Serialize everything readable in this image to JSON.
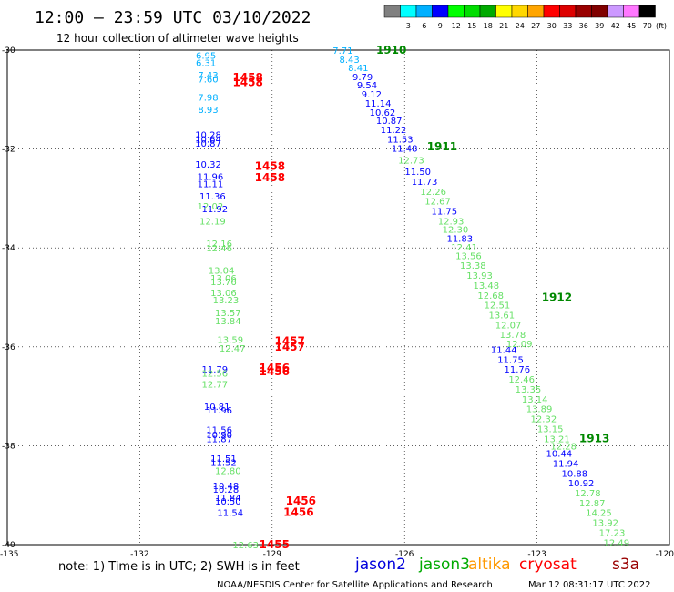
{
  "header": {
    "title": "12:00 – 23:59 UTC 03/10/2022",
    "subtitle": "12 hour collection of altimeter wave heights"
  },
  "legend": {
    "bins": [
      {
        "label": "",
        "color": "#808080"
      },
      {
        "label": "3",
        "color": "#00ffff"
      },
      {
        "label": "6",
        "color": "#00b0ff"
      },
      {
        "label": "9",
        "color": "#0000ff"
      },
      {
        "label": "12",
        "color": "#00ff00"
      },
      {
        "label": "15",
        "color": "#00dd00"
      },
      {
        "label": "18",
        "color": "#00aa00"
      },
      {
        "label": "21",
        "color": "#ffff00"
      },
      {
        "label": "24",
        "color": "#ffd700"
      },
      {
        "label": "27",
        "color": "#ffa500"
      },
      {
        "label": "30",
        "color": "#ff0000"
      },
      {
        "label": "33",
        "color": "#dd0000"
      },
      {
        "label": "36",
        "color": "#990000"
      },
      {
        "label": "39",
        "color": "#800000"
      },
      {
        "label": "42",
        "color": "#cc99ff"
      },
      {
        "label": "45",
        "color": "#ff77ff"
      },
      {
        "label": "70",
        "color": "#000000"
      }
    ],
    "unit": "(ft)"
  },
  "chart_data": {
    "type": "scatter",
    "title": "12:00 – 23:59 UTC 03/10/2022",
    "subtitle": "12 hour collection of altimeter wave heights",
    "xlim": [
      -135,
      -120
    ],
    "ylim": [
      -40,
      -30
    ],
    "x_ticks": [
      "-135",
      "-132",
      "-129",
      "-126",
      "-123",
      "-120"
    ],
    "y_ticks": [
      "-30",
      "-32",
      "-34",
      "-36",
      "-38",
      "-40"
    ],
    "grid": true,
    "colors": {
      "cyan": "#00b0ff",
      "blue": "#0000ff",
      "green": "#66e066",
      "time_red": "#ff0000",
      "time_green": "#008800"
    },
    "series": [
      {
        "name": "jason2",
        "points": [
          {
            "x": -130.5,
            "y": -30.1,
            "label": "6.95",
            "c": "cyan"
          },
          {
            "x": -130.5,
            "y": -30.25,
            "label": "6.31",
            "c": "cyan"
          },
          {
            "x": -130.45,
            "y": -30.5,
            "label": "7.43",
            "c": "cyan"
          },
          {
            "x": -130.45,
            "y": -30.58,
            "label": "7.60",
            "c": "cyan"
          },
          {
            "x": -130.45,
            "y": -30.95,
            "label": "7.98",
            "c": "cyan"
          },
          {
            "x": -130.45,
            "y": -31.2,
            "label": "8.93",
            "c": "cyan"
          },
          {
            "x": -130.45,
            "y": -31.7,
            "label": "10.28",
            "c": "blue"
          },
          {
            "x": -130.45,
            "y": -31.8,
            "label": "10.64",
            "c": "blue"
          },
          {
            "x": -130.45,
            "y": -31.88,
            "label": "10.87",
            "c": "blue"
          },
          {
            "x": -130.45,
            "y": -32.3,
            "label": "10.32",
            "c": "blue"
          },
          {
            "x": -130.4,
            "y": -32.55,
            "label": "11.96",
            "c": "blue"
          },
          {
            "x": -130.4,
            "y": -32.7,
            "label": "11.11",
            "c": "blue"
          },
          {
            "x": -130.35,
            "y": -32.95,
            "label": "11.36",
            "c": "blue"
          },
          {
            "x": -130.3,
            "y": -33.2,
            "label": "11.92",
            "c": "blue"
          },
          {
            "x": -130.3,
            "y": -36.45,
            "label": "11.79",
            "c": "blue"
          },
          {
            "x": -130.25,
            "y": -37.2,
            "label": "10.81",
            "c": "blue"
          },
          {
            "x": -130.2,
            "y": -37.27,
            "label": "11.96",
            "c": "blue"
          },
          {
            "x": -130.2,
            "y": -37.67,
            "label": "11.56",
            "c": "blue"
          },
          {
            "x": -130.2,
            "y": -37.77,
            "label": "10.90",
            "c": "blue"
          },
          {
            "x": -130.2,
            "y": -37.85,
            "label": "11.87",
            "c": "blue"
          },
          {
            "x": -130.1,
            "y": -38.25,
            "label": "11.51",
            "c": "blue"
          },
          {
            "x": -130.1,
            "y": -38.33,
            "label": "11.52",
            "c": "blue"
          },
          {
            "x": -130.05,
            "y": -38.8,
            "label": "10.48",
            "c": "blue"
          },
          {
            "x": -130.05,
            "y": -38.88,
            "label": "10.28",
            "c": "blue"
          },
          {
            "x": -130.0,
            "y": -39.04,
            "label": "11.84",
            "c": "blue"
          },
          {
            "x": -130.0,
            "y": -39.12,
            "label": "10.50",
            "c": "blue"
          },
          {
            "x": -129.95,
            "y": -39.35,
            "label": "11.54",
            "c": "blue"
          },
          {
            "x": -127.4,
            "y": -30.0,
            "label": "7.71",
            "c": "cyan"
          },
          {
            "x": -127.25,
            "y": -30.18,
            "label": "8.43",
            "c": "cyan"
          },
          {
            "x": -127.05,
            "y": -30.35,
            "label": "8.41",
            "c": "cyan"
          },
          {
            "x": -126.95,
            "y": -30.53,
            "label": "9.79",
            "c": "blue"
          },
          {
            "x": -126.85,
            "y": -30.7,
            "label": "9.54",
            "c": "blue"
          },
          {
            "x": -126.75,
            "y": -30.88,
            "label": "9.12",
            "c": "blue"
          },
          {
            "x": -126.6,
            "y": -31.07,
            "label": "11.14",
            "c": "blue"
          },
          {
            "x": -126.5,
            "y": -31.25,
            "label": "10.62",
            "c": "blue"
          },
          {
            "x": -126.35,
            "y": -31.42,
            "label": "10.87",
            "c": "blue"
          },
          {
            "x": -126.25,
            "y": -31.6,
            "label": "11.22",
            "c": "blue"
          },
          {
            "x": -126.1,
            "y": -31.8,
            "label": "11.53",
            "c": "blue"
          },
          {
            "x": -126.0,
            "y": -31.98,
            "label": "11.48",
            "c": "blue"
          },
          {
            "x": -125.7,
            "y": -32.45,
            "label": "11.50",
            "c": "blue"
          },
          {
            "x": -125.55,
            "y": -32.65,
            "label": "11.73",
            "c": "blue"
          },
          {
            "x": -125.1,
            "y": -33.25,
            "label": "11.75",
            "c": "blue"
          },
          {
            "x": -124.75,
            "y": -33.8,
            "label": "11.83",
            "c": "blue"
          },
          {
            "x": -123.75,
            "y": -36.05,
            "label": "11.44",
            "c": "blue"
          },
          {
            "x": -123.6,
            "y": -36.25,
            "label": "11.75",
            "c": "blue"
          },
          {
            "x": -123.45,
            "y": -36.45,
            "label": "11.76",
            "c": "blue"
          },
          {
            "x": -122.5,
            "y": -38.15,
            "label": "10.44",
            "c": "blue"
          },
          {
            "x": -122.35,
            "y": -38.35,
            "label": "11.94",
            "c": "blue"
          },
          {
            "x": -122.15,
            "y": -38.55,
            "label": "10.88",
            "c": "blue"
          },
          {
            "x": -122.0,
            "y": -38.75,
            "label": "10.92",
            "c": "blue"
          }
        ]
      },
      {
        "name": "jason3",
        "points": [
          {
            "x": -130.4,
            "y": -33.15,
            "label": "12.02",
            "c": "green"
          },
          {
            "x": -130.35,
            "y": -33.45,
            "label": "12.19",
            "c": "green"
          },
          {
            "x": -130.2,
            "y": -33.9,
            "label": "12.16",
            "c": "green"
          },
          {
            "x": -130.2,
            "y": -34.0,
            "label": "12.46",
            "c": "green"
          },
          {
            "x": -130.15,
            "y": -34.45,
            "label": "13.04",
            "c": "green"
          },
          {
            "x": -130.1,
            "y": -34.6,
            "label": "13.06",
            "c": "green"
          },
          {
            "x": -130.1,
            "y": -34.68,
            "label": "13.76",
            "c": "green"
          },
          {
            "x": -130.1,
            "y": -34.9,
            "label": "13.06",
            "c": "green"
          },
          {
            "x": -130.05,
            "y": -35.05,
            "label": "13.23",
            "c": "green"
          },
          {
            "x": -130.0,
            "y": -35.3,
            "label": "13.57",
            "c": "green"
          },
          {
            "x": -130.0,
            "y": -35.47,
            "label": "13.84",
            "c": "green"
          },
          {
            "x": -129.95,
            "y": -35.85,
            "label": "13.59",
            "c": "green"
          },
          {
            "x": -129.9,
            "y": -36.02,
            "label": "12.47",
            "c": "green"
          },
          {
            "x": -130.3,
            "y": -36.53,
            "label": "12.56",
            "c": "green"
          },
          {
            "x": -130.3,
            "y": -36.75,
            "label": "12.77",
            "c": "green"
          },
          {
            "x": -130.0,
            "y": -38.5,
            "label": "12.80",
            "c": "green"
          },
          {
            "x": -129.6,
            "y": -40.0,
            "label": "12.63",
            "c": "green"
          },
          {
            "x": -125.85,
            "y": -32.22,
            "label": "12.73",
            "c": "green"
          },
          {
            "x": -125.35,
            "y": -32.85,
            "label": "12.26",
            "c": "green"
          },
          {
            "x": -125.25,
            "y": -33.05,
            "label": "12.67",
            "c": "green"
          },
          {
            "x": -124.95,
            "y": -33.45,
            "label": "12.93",
            "c": "green"
          },
          {
            "x": -124.85,
            "y": -33.62,
            "label": "12.30",
            "c": "green"
          },
          {
            "x": -124.65,
            "y": -33.98,
            "label": "12.41",
            "c": "green"
          },
          {
            "x": -124.55,
            "y": -34.15,
            "label": "13.56",
            "c": "green"
          },
          {
            "x": -124.45,
            "y": -34.35,
            "label": "13.38",
            "c": "green"
          },
          {
            "x": -124.3,
            "y": -34.55,
            "label": "13.93",
            "c": "green"
          },
          {
            "x": -124.15,
            "y": -34.75,
            "label": "13.48",
            "c": "green"
          },
          {
            "x": -124.05,
            "y": -34.95,
            "label": "12.68",
            "c": "green"
          },
          {
            "x": -123.9,
            "y": -35.15,
            "label": "12.51",
            "c": "green"
          },
          {
            "x": -123.8,
            "y": -35.35,
            "label": "13.61",
            "c": "green"
          },
          {
            "x": -123.65,
            "y": -35.55,
            "label": "12.07",
            "c": "green"
          },
          {
            "x": -123.55,
            "y": -35.75,
            "label": "13.78",
            "c": "green"
          },
          {
            "x": -123.4,
            "y": -35.93,
            "label": "12.09",
            "c": "green"
          },
          {
            "x": -123.35,
            "y": -36.65,
            "label": "12.46",
            "c": "green"
          },
          {
            "x": -123.2,
            "y": -36.85,
            "label": "13.35",
            "c": "green"
          },
          {
            "x": -123.05,
            "y": -37.05,
            "label": "13.14",
            "c": "green"
          },
          {
            "x": -122.95,
            "y": -37.25,
            "label": "13.89",
            "c": "green"
          },
          {
            "x": -122.85,
            "y": -37.45,
            "label": "12.32",
            "c": "green"
          },
          {
            "x": -122.7,
            "y": -37.65,
            "label": "13.15",
            "c": "green"
          },
          {
            "x": -122.55,
            "y": -37.85,
            "label": "13.21",
            "c": "green"
          },
          {
            "x": -122.4,
            "y": -38.0,
            "label": "12.28",
            "c": "green"
          },
          {
            "x": -121.85,
            "y": -38.95,
            "label": "12.78",
            "c": "green"
          },
          {
            "x": -121.75,
            "y": -39.15,
            "label": "12.87",
            "c": "green"
          },
          {
            "x": -121.6,
            "y": -39.35,
            "label": "14.25",
            "c": "green"
          },
          {
            "x": -121.45,
            "y": -39.55,
            "label": "13.92",
            "c": "green"
          },
          {
            "x": -121.3,
            "y": -39.75,
            "label": "17.23",
            "c": "green"
          },
          {
            "x": -121.2,
            "y": -39.95,
            "label": "12.49",
            "c": "green"
          }
        ]
      }
    ],
    "time_labels": [
      {
        "x": -129.55,
        "y": -30.55,
        "label": "1458",
        "c": "time_red"
      },
      {
        "x": -129.55,
        "y": -30.65,
        "label": "1458",
        "c": "time_red"
      },
      {
        "x": -129.05,
        "y": -32.35,
        "label": "1458",
        "c": "time_red"
      },
      {
        "x": -129.05,
        "y": -32.58,
        "label": "1458",
        "c": "time_red"
      },
      {
        "x": -128.6,
        "y": -35.88,
        "label": "1457",
        "c": "time_red"
      },
      {
        "x": -128.6,
        "y": -36.0,
        "label": "1457",
        "c": "time_red"
      },
      {
        "x": -128.95,
        "y": -36.43,
        "label": "1456",
        "c": "time_red"
      },
      {
        "x": -128.95,
        "y": -36.5,
        "label": "1456",
        "c": "time_red"
      },
      {
        "x": -128.35,
        "y": -39.12,
        "label": "1456",
        "c": "time_red"
      },
      {
        "x": -128.4,
        "y": -39.35,
        "label": "1456",
        "c": "time_red"
      },
      {
        "x": -128.95,
        "y": -40.0,
        "label": "1455",
        "c": "time_red"
      },
      {
        "x": -126.3,
        "y": -30.0,
        "label": "1910",
        "c": "time_green"
      },
      {
        "x": -125.15,
        "y": -31.95,
        "label": "1911",
        "c": "time_green"
      },
      {
        "x": -122.55,
        "y": -35.0,
        "label": "1912",
        "c": "time_green"
      },
      {
        "x": -121.7,
        "y": -37.85,
        "label": "1913",
        "c": "time_green"
      }
    ]
  },
  "notes": {
    "text": "note:  1) Time is in UTC;  2) SWH is in feet",
    "satellites": [
      {
        "name": "jason2",
        "color": "#0000dd"
      },
      {
        "name": "jason3",
        "color": "#00aa00"
      },
      {
        "name": "altika",
        "color": "#ff9900"
      },
      {
        "name": "cryosat",
        "color": "#ff0000"
      },
      {
        "name": "s3a",
        "color": "#990000"
      }
    ]
  },
  "footer": {
    "credit": "NOAA/NESDIS Center for Satellite Applications and Research",
    "timestamp": "Mar 12 08:31:17 UTC 2022"
  }
}
